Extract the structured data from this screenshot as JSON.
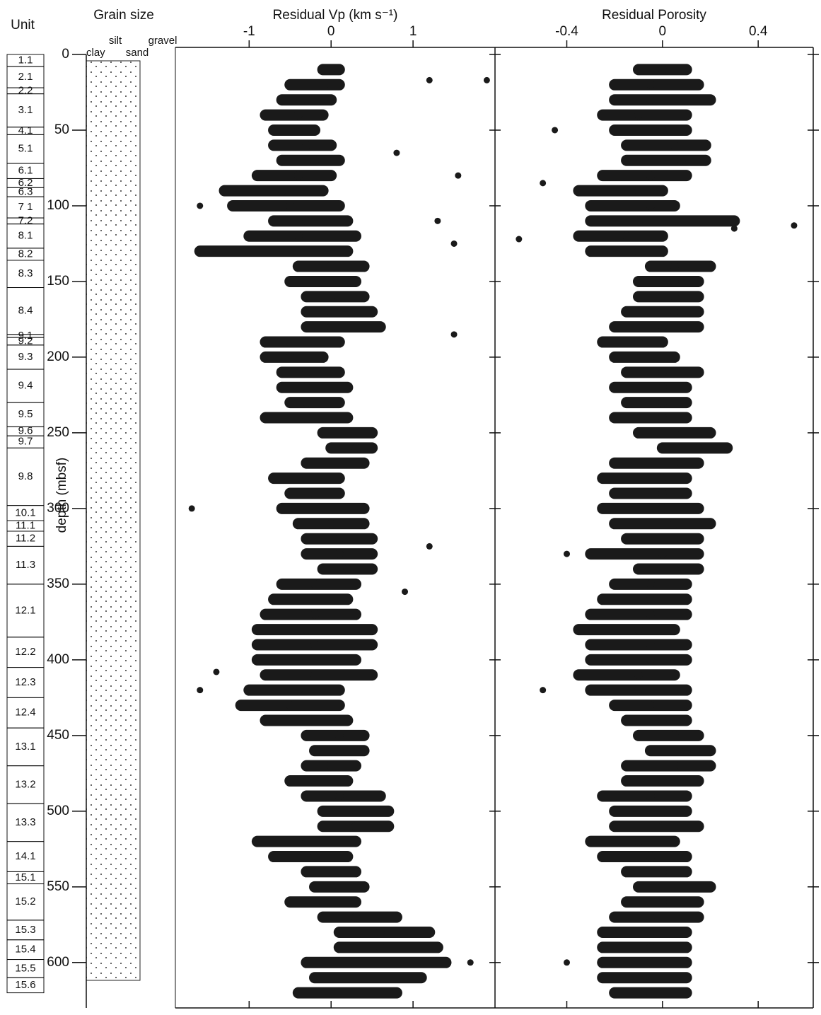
{
  "unit_header": "Unit",
  "depth_axis": {
    "label": "depth (mbsf)",
    "ylim": [
      0,
      630
    ],
    "yticks": [
      0,
      50,
      100,
      150,
      200,
      250,
      300,
      350,
      400,
      450,
      500,
      550,
      600
    ]
  },
  "grain_size": {
    "title": "Grain size",
    "classes": [
      "clay",
      "silt",
      "sand",
      "gravel"
    ]
  },
  "units": {
    "labels": [
      "1.1",
      "2.1",
      "2.2",
      "3.1",
      "4.1",
      "5.1",
      "6.1",
      "6.2",
      "6.3",
      "7 1",
      "7.2",
      "8.1",
      "8.2",
      "8.3",
      "8.4",
      "9.1",
      "9.2",
      "9.3",
      "9.4",
      "9.5",
      "9.6",
      "9.7",
      "9.8",
      "10.1",
      "11.1",
      "11.2",
      "11.3",
      "12.1",
      "12.2",
      "12.3",
      "12.4",
      "13.1",
      "13.2",
      "13.3",
      "14.1",
      "15.1",
      "15.2",
      "15.3",
      "15.4",
      "15.5",
      "15.6"
    ],
    "tops": [
      0,
      8,
      22,
      26,
      48,
      53,
      72,
      82,
      88,
      94,
      108,
      112,
      128,
      136,
      154,
      185,
      187,
      192,
      208,
      230,
      246,
      252,
      260,
      298,
      308,
      315,
      325,
      350,
      385,
      405,
      425,
      445,
      470,
      495,
      520,
      540,
      548,
      572,
      585,
      598,
      610
    ],
    "bottoms": [
      8,
      22,
      26,
      48,
      53,
      72,
      82,
      88,
      94,
      108,
      112,
      128,
      136,
      154,
      185,
      187,
      192,
      208,
      230,
      246,
      252,
      260,
      298,
      308,
      315,
      325,
      350,
      385,
      405,
      425,
      445,
      470,
      495,
      520,
      540,
      548,
      572,
      585,
      598,
      610,
      620
    ]
  },
  "chart_data": [
    {
      "type": "range",
      "title": "Residual Vp (km s⁻¹)",
      "color": "#1a1a1a",
      "xlim": [
        -1.9,
        2.0
      ],
      "xticks": [
        -1,
        0,
        1
      ],
      "depth": [
        10,
        20,
        30,
        40,
        50,
        60,
        70,
        80,
        90,
        100,
        110,
        120,
        130,
        140,
        150,
        160,
        170,
        180,
        190,
        200,
        210,
        220,
        230,
        240,
        250,
        260,
        270,
        280,
        290,
        300,
        310,
        320,
        330,
        340,
        350,
        360,
        370,
        380,
        390,
        400,
        410,
        420,
        430,
        440,
        450,
        460,
        470,
        480,
        490,
        500,
        510,
        520,
        530,
        540,
        550,
        560,
        570,
        580,
        590,
        600,
        610,
        620
      ],
      "center": [
        0.0,
        0.0,
        -0.3,
        -0.4,
        -0.4,
        -0.3,
        -0.2,
        -0.4,
        -0.6,
        -0.5,
        -0.3,
        -0.4,
        -0.5,
        0.0,
        -0.1,
        0.0,
        0.0,
        0.0,
        -0.5,
        -0.5,
        -0.3,
        -0.3,
        -0.3,
        -0.3,
        0.2,
        0.3,
        0.2,
        -0.3,
        -0.2,
        -0.1,
        0.0,
        0.1,
        0.1,
        0.2,
        -0.2,
        -0.3,
        -0.2,
        -0.3,
        -0.2,
        -0.3,
        -0.2,
        -0.4,
        -0.5,
        -0.2,
        0.1,
        0.1,
        0.0,
        -0.2,
        0.1,
        0.3,
        0.3,
        -0.3,
        -0.2,
        0.0,
        0.1,
        -0.1,
        0.3,
        0.6,
        0.6,
        0.5,
        0.4,
        0.2
      ],
      "min": [
        -0.1,
        -0.5,
        -0.6,
        -0.8,
        -0.7,
        -0.7,
        -0.6,
        -0.9,
        -1.3,
        -1.2,
        -0.7,
        -1.0,
        -1.6,
        -0.4,
        -0.5,
        -0.3,
        -0.3,
        -0.3,
        -0.8,
        -0.8,
        -0.6,
        -0.6,
        -0.5,
        -0.8,
        -0.1,
        0.0,
        -0.3,
        -0.7,
        -0.5,
        -0.6,
        -0.4,
        -0.3,
        -0.3,
        -0.1,
        -0.6,
        -0.7,
        -0.8,
        -0.9,
        -0.9,
        -0.9,
        -0.8,
        -1.0,
        -1.1,
        -0.8,
        -0.3,
        -0.2,
        -0.3,
        -0.5,
        -0.3,
        -0.1,
        -0.1,
        -0.9,
        -0.7,
        -0.3,
        -0.2,
        -0.5,
        -0.1,
        0.1,
        0.1,
        -0.3,
        -0.2,
        -0.4
      ],
      "max": [
        0.1,
        0.1,
        0.0,
        -0.1,
        -0.2,
        0.0,
        0.1,
        0.0,
        -0.1,
        0.1,
        0.2,
        0.3,
        0.2,
        0.4,
        0.3,
        0.4,
        0.5,
        0.6,
        0.1,
        -0.1,
        0.1,
        0.2,
        0.1,
        0.2,
        0.5,
        0.5,
        0.4,
        0.1,
        0.1,
        0.4,
        0.4,
        0.5,
        0.5,
        0.5,
        0.3,
        0.2,
        0.3,
        0.5,
        0.5,
        0.3,
        0.5,
        0.1,
        0.1,
        0.2,
        0.4,
        0.4,
        0.3,
        0.2,
        0.6,
        0.7,
        0.7,
        0.3,
        0.2,
        0.3,
        0.4,
        0.3,
        0.8,
        1.2,
        1.3,
        1.4,
        1.1,
        0.8
      ],
      "outliers": {
        "depth": [
          17,
          17,
          65,
          80,
          110,
          125,
          130,
          100,
          185,
          300,
          420,
          408,
          355,
          325,
          600
        ],
        "values": [
          1.9,
          1.2,
          0.8,
          1.55,
          1.3,
          1.5,
          -1.6,
          -1.6,
          1.5,
          -1.7,
          -1.6,
          -1.4,
          0.9,
          1.2,
          1.7
        ]
      }
    },
    {
      "type": "range",
      "title": "Residual Porosity",
      "color": "#1a1a1a",
      "xlim": [
        -0.7,
        0.63
      ],
      "xticks": [
        -0.4,
        0,
        0.4
      ],
      "depth": [
        10,
        20,
        30,
        40,
        50,
        60,
        70,
        80,
        90,
        100,
        110,
        120,
        130,
        140,
        150,
        160,
        170,
        180,
        190,
        200,
        210,
        220,
        230,
        240,
        250,
        260,
        270,
        280,
        290,
        300,
        310,
        320,
        330,
        340,
        350,
        360,
        370,
        380,
        390,
        400,
        410,
        420,
        430,
        440,
        450,
        460,
        470,
        480,
        490,
        500,
        510,
        520,
        530,
        540,
        550,
        560,
        570,
        580,
        590,
        600,
        610,
        620
      ],
      "center": [
        0.0,
        -0.05,
        -0.05,
        -0.1,
        0.0,
        0.05,
        0.08,
        -0.05,
        -0.1,
        -0.05,
        -0.1,
        -0.15,
        -0.1,
        0.05,
        0.05,
        0.05,
        0.05,
        0.0,
        -0.1,
        -0.05,
        0.0,
        0.0,
        0.0,
        0.0,
        0.05,
        0.15,
        0.05,
        0.0,
        0.0,
        0.0,
        0.05,
        0.05,
        0.0,
        0.05,
        -0.05,
        -0.05,
        -0.05,
        -0.1,
        -0.05,
        -0.05,
        -0.1,
        -0.1,
        -0.05,
        0.0,
        0.05,
        0.1,
        0.05,
        0.0,
        -0.05,
        0.0,
        0.0,
        -0.1,
        -0.05,
        0.0,
        0.05,
        0.0,
        -0.05,
        -0.05,
        -0.05,
        -0.05,
        -0.05,
        -0.05
      ],
      "min": [
        -0.1,
        -0.2,
        -0.2,
        -0.25,
        -0.2,
        -0.15,
        -0.15,
        -0.25,
        -0.35,
        -0.3,
        -0.3,
        -0.35,
        -0.3,
        -0.05,
        -0.1,
        -0.1,
        -0.15,
        -0.2,
        -0.25,
        -0.2,
        -0.15,
        -0.2,
        -0.15,
        -0.2,
        -0.1,
        0.0,
        -0.2,
        -0.25,
        -0.2,
        -0.25,
        -0.2,
        -0.15,
        -0.3,
        -0.1,
        -0.2,
        -0.25,
        -0.3,
        -0.35,
        -0.3,
        -0.3,
        -0.35,
        -0.3,
        -0.2,
        -0.15,
        -0.1,
        -0.05,
        -0.15,
        -0.15,
        -0.25,
        -0.2,
        -0.2,
        -0.3,
        -0.25,
        -0.15,
        -0.1,
        -0.15,
        -0.2,
        -0.25,
        -0.25,
        -0.25,
        -0.25,
        -0.2
      ],
      "max": [
        0.1,
        0.15,
        0.2,
        0.1,
        0.1,
        0.18,
        0.18,
        0.1,
        0.0,
        0.05,
        0.3,
        0.0,
        0.0,
        0.2,
        0.15,
        0.15,
        0.15,
        0.15,
        0.0,
        0.05,
        0.15,
        0.1,
        0.1,
        0.1,
        0.2,
        0.27,
        0.15,
        0.1,
        0.1,
        0.15,
        0.2,
        0.15,
        0.15,
        0.15,
        0.1,
        0.1,
        0.1,
        0.05,
        0.1,
        0.1,
        0.05,
        0.1,
        0.1,
        0.1,
        0.15,
        0.2,
        0.2,
        0.15,
        0.1,
        0.1,
        0.15,
        0.05,
        0.1,
        0.1,
        0.2,
        0.15,
        0.15,
        0.1,
        0.1,
        0.1,
        0.1,
        0.1
      ],
      "outliers": {
        "depth": [
          113,
          122,
          50,
          85,
          330,
          420,
          600,
          115,
          260
        ],
        "values": [
          0.55,
          -0.6,
          -0.45,
          -0.5,
          -0.4,
          -0.5,
          -0.4,
          0.3,
          0.27
        ]
      }
    }
  ]
}
